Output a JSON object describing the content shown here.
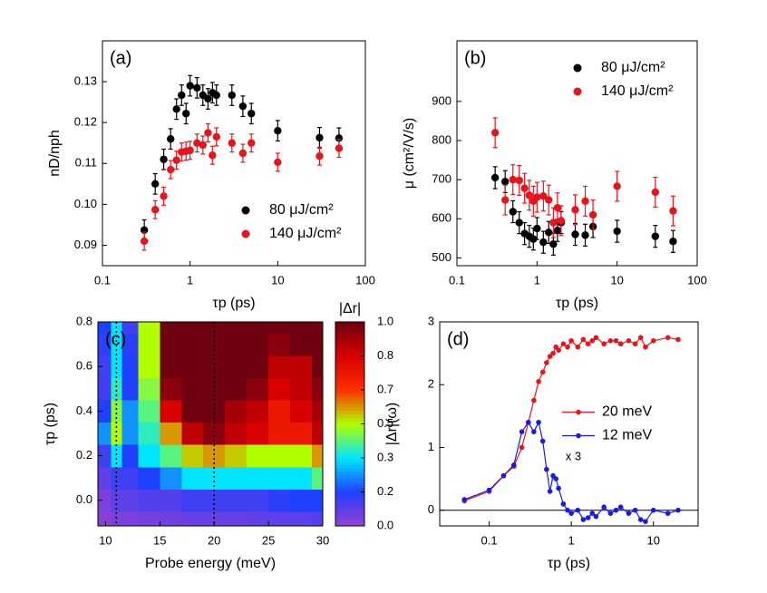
{
  "chart_data": [
    {
      "type": "scatter",
      "label": "(a)",
      "xlabel": "τp (ps)",
      "ylabel": "nD/nph",
      "xlog": true,
      "xlim": [
        0.1,
        100
      ],
      "xticks": [
        0.1,
        1,
        10,
        100
      ],
      "ylim": [
        0.085,
        0.14
      ],
      "yticks": [
        0.09,
        {
          "value": 0.1,
          "label": "0.10"
        },
        0.11,
        0.12,
        0.13
      ],
      "legend": "lower right",
      "x": [
        0.3,
        0.4,
        0.5,
        0.6,
        0.7,
        0.8,
        0.9,
        1,
        1.2,
        1.4,
        1.6,
        1.8,
        2,
        3,
        4,
        5,
        10,
        30,
        50
      ],
      "series": [
        {
          "name": "80 μJ/cm²",
          "color": "#000000",
          "error": 0.0025,
          "values": [
            0.0937,
            0.105,
            0.111,
            0.116,
            0.1233,
            0.1267,
            0.1222,
            0.129,
            0.1285,
            0.1267,
            0.1258,
            0.1273,
            0.1267,
            0.1267,
            0.124,
            0.1222,
            0.118,
            0.1163,
            0.1162
          ]
        },
        {
          "name": "140 μJ/cm²",
          "color": "#e8141b",
          "error": 0.0022,
          "values": [
            0.091,
            0.0987,
            0.102,
            0.1085,
            0.1108,
            0.1128,
            0.113,
            0.1132,
            0.115,
            0.1145,
            0.1175,
            0.112,
            0.1165,
            0.115,
            0.1125,
            0.115,
            0.1103,
            0.1118,
            0.1137
          ]
        }
      ]
    },
    {
      "type": "scatter",
      "label": "(b)",
      "xlabel": "τp (ps)",
      "ylabel": "μ (cm²/V/s)",
      "xlog": true,
      "xlim": [
        0.1,
        100
      ],
      "xticks": [
        0.1,
        1,
        10,
        100
      ],
      "ylim": [
        480,
        1055
      ],
      "yticks": [
        500,
        600,
        700,
        800,
        900
      ],
      "legend": "upper right",
      "x": [
        0.3,
        0.4,
        0.5,
        0.6,
        0.7,
        0.8,
        0.9,
        1,
        1.2,
        1.4,
        1.6,
        1.8,
        2,
        3,
        4,
        5,
        10,
        30,
        50
      ],
      "series": [
        {
          "name": "80 μJ/cm²",
          "color": "#000000",
          "error": 28,
          "values": [
            705,
            695,
            618,
            590,
            562,
            555,
            548,
            575,
            540,
            565,
            535,
            570,
            590,
            560,
            558,
            580,
            568,
            555,
            542
          ]
        },
        {
          "name": "140 μJ/cm²",
          "color": "#e8141b",
          "error": 38,
          "values": [
            820,
            648,
            700,
            698,
            678,
            660,
            645,
            655,
            658,
            648,
            590,
            628,
            595,
            623,
            645,
            610,
            683,
            668,
            620
          ]
        }
      ]
    },
    {
      "type": "heatmap",
      "label": "(c)",
      "xlabel": "Probe energy (meV)",
      "ylabel": "τp (ps)",
      "zlabel": "|Δr|",
      "xlim": [
        9.3,
        30
      ],
      "xticks": [
        10,
        15,
        20,
        25,
        30
      ],
      "ylim": [
        -0.115,
        0.8
      ],
      "yticks": [
        {
          "value": 0,
          "label": "0.0"
        },
        0.2,
        0.4,
        0.6,
        0.8
      ],
      "zticks": [
        {
          "value": 0,
          "label": "0.0"
        },
        0.2,
        0.3,
        0.5,
        0.7,
        0.8,
        {
          "value": 1,
          "label": "1.0"
        }
      ],
      "colorscale": [
        "#9a40d0",
        "#2040ff",
        "#00e5ff",
        "#b0ff00",
        "#ff3000",
        "#d80000",
        "#700010"
      ],
      "vlines": [
        11,
        20
      ],
      "x": [
        10,
        11,
        12,
        14,
        16,
        18,
        20,
        22,
        24,
        26,
        28,
        30
      ],
      "y": [
        -0.1,
        0,
        0.1,
        0.2,
        0.3,
        0.4,
        0.5,
        0.6,
        0.7,
        0.8
      ],
      "z": [
        [
          0.03,
          0.05,
          0.05,
          0.06,
          0.07,
          0.08,
          0.08,
          0.08,
          0.09,
          0.1,
          0.1,
          0.12
        ],
        [
          0.05,
          0.1,
          0.1,
          0.12,
          0.12,
          0.15,
          0.15,
          0.15,
          0.15,
          0.18,
          0.2,
          0.2
        ],
        [
          0.1,
          0.15,
          0.15,
          0.2,
          0.25,
          0.3,
          0.3,
          0.3,
          0.3,
          0.3,
          0.3,
          0.4
        ],
        [
          0.15,
          0.3,
          0.2,
          0.3,
          0.4,
          0.55,
          0.6,
          0.55,
          0.5,
          0.5,
          0.5,
          0.6
        ],
        [
          0.25,
          0.5,
          0.25,
          0.35,
          0.6,
          0.85,
          0.95,
          0.85,
          0.8,
          0.75,
          0.75,
          0.85
        ],
        [
          0.2,
          0.45,
          0.25,
          0.4,
          0.8,
          1.0,
          1.0,
          0.9,
          0.85,
          0.75,
          0.8,
          0.9
        ],
        [
          0.15,
          0.35,
          0.2,
          0.45,
          0.95,
          1.0,
          1.0,
          1.0,
          0.95,
          0.8,
          0.85,
          0.95
        ],
        [
          0.15,
          0.3,
          0.2,
          0.5,
          1.0,
          1.0,
          1.0,
          1.0,
          1.0,
          0.85,
          0.85,
          1.0
        ],
        [
          0.18,
          0.3,
          0.18,
          0.5,
          1.0,
          1.0,
          1.0,
          1.0,
          1.0,
          0.95,
          1.0,
          1.0
        ],
        [
          0.2,
          0.3,
          0.15,
          0.5,
          1.0,
          1.0,
          1.0,
          1.0,
          1.0,
          1.0,
          1.0,
          1.0
        ]
      ]
    },
    {
      "type": "line",
      "label": "(d)",
      "xlabel": "τp (ps)",
      "ylabel": "|Δr|(ω)",
      "xlog": true,
      "xlim": [
        0.025,
        35
      ],
      "xticks": [
        0.1,
        1,
        10
      ],
      "ylim": [
        -0.25,
        3
      ],
      "yticks": [
        0,
        1,
        2,
        3
      ],
      "hline": 0,
      "legend": "center right",
      "annotation": "x 3",
      "x": [
        0.05,
        0.1,
        0.15,
        0.2,
        0.25,
        0.3,
        0.35,
        0.4,
        0.45,
        0.5,
        0.55,
        0.6,
        0.65,
        0.7,
        0.8,
        0.9,
        1,
        1.2,
        1.4,
        1.6,
        1.8,
        2,
        2.5,
        3,
        3.5,
        4,
        5,
        6,
        7,
        8,
        10,
        15,
        20
      ],
      "series": [
        {
          "name": "20 meV",
          "color": "#e8141b",
          "values": [
            0.15,
            0.3,
            0.55,
            0.7,
            1.0,
            1.4,
            1.75,
            2.05,
            2.2,
            2.35,
            2.45,
            2.5,
            2.6,
            2.55,
            2.65,
            2.6,
            2.7,
            2.6,
            2.72,
            2.65,
            2.7,
            2.75,
            2.65,
            2.7,
            2.7,
            2.65,
            2.7,
            2.65,
            2.75,
            2.6,
            2.7,
            2.75,
            2.72
          ]
        },
        {
          "name": "12 meV",
          "color": "#1a1ae6",
          "values": [
            0.17,
            0.32,
            0.55,
            0.72,
            1.25,
            1.4,
            1.25,
            1.4,
            1.1,
            0.65,
            0.3,
            0.55,
            0.5,
            0.35,
            0.1,
            0.0,
            -0.05,
            0.0,
            -0.15,
            -0.12,
            -0.05,
            -0.1,
            0.05,
            -0.05,
            0.0,
            0.05,
            -0.05,
            0.0,
            -0.15,
            -0.18,
            0.0,
            -0.05,
            0.0
          ]
        }
      ]
    }
  ]
}
